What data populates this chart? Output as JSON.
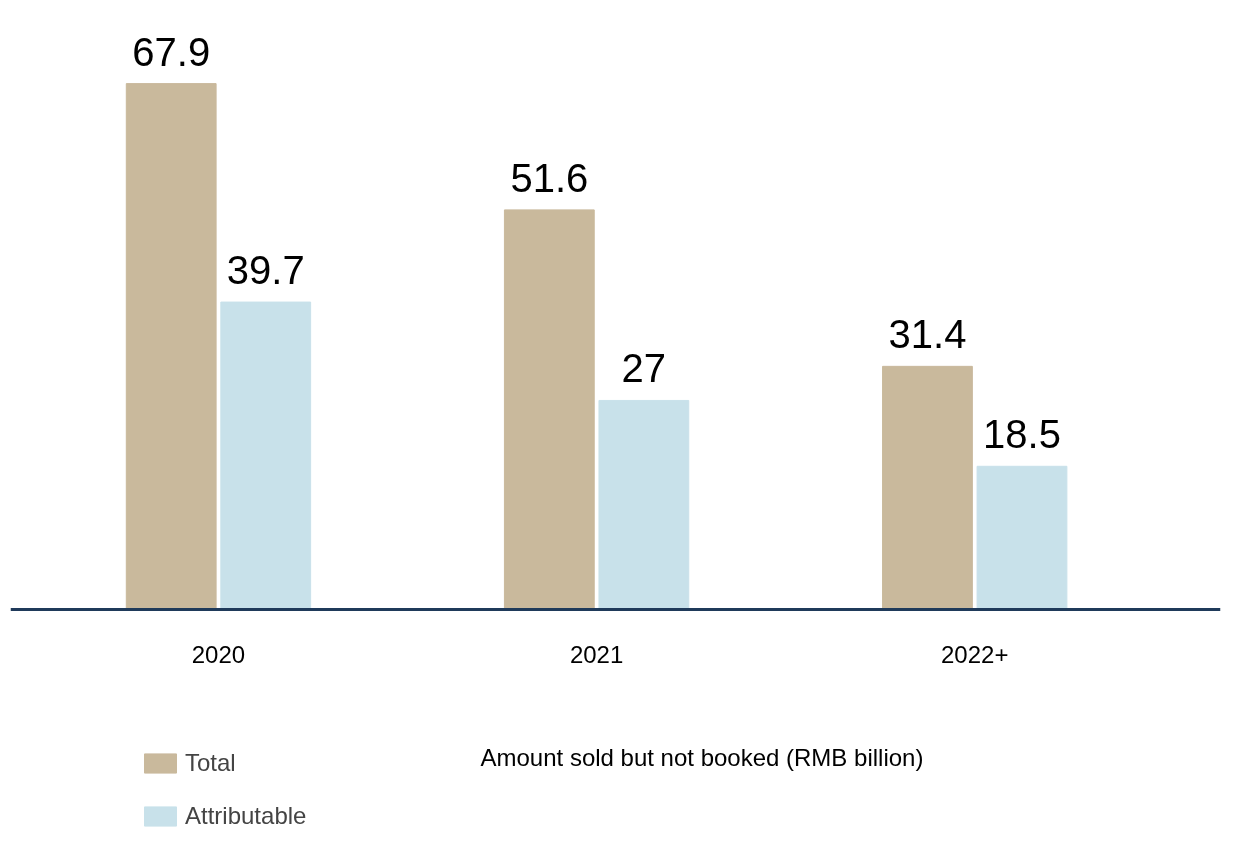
{
  "chart_data": {
    "type": "bar",
    "categories": [
      "2020",
      "2021",
      "2022+"
    ],
    "series": [
      {
        "name": "Total",
        "color": "#c9b99c",
        "values": [
          67.9,
          51.6,
          31.4
        ]
      },
      {
        "name": "Attributable",
        "color": "#c8e1ea",
        "values": [
          39.7,
          27,
          18.5
        ]
      }
    ],
    "data_labels": true,
    "legend": "bottom left",
    "annotations": [
      "Amount sold but not booked (RMB billion)"
    ]
  }
}
